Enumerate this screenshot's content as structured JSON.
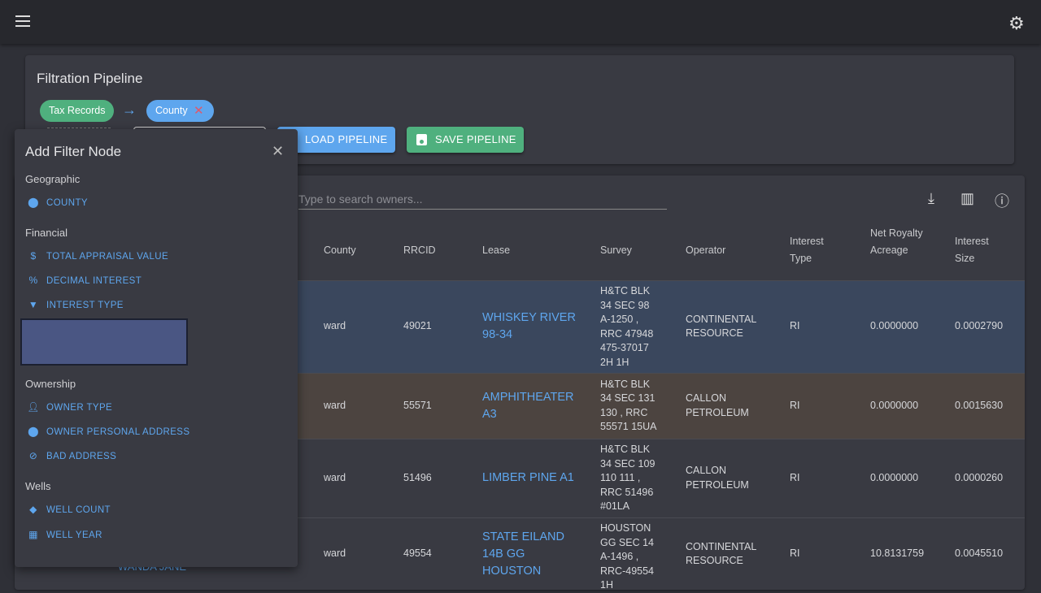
{
  "topbar": {
    "menu_icon": "menu-icon",
    "settings_icon": "gear-icon"
  },
  "pipeline": {
    "title": "Filtration Pipeline",
    "nodes": [
      "Tax Records",
      "County"
    ],
    "load_label": "LOAD PIPELINE",
    "save_label": "SAVE PIPELINE"
  },
  "search": {
    "placeholder": "Type to search owners..."
  },
  "table": {
    "headers": [
      "County",
      "RRCID",
      "Lease",
      "Survey",
      "Operator",
      "Interest Type",
      "Net Royalty Acreage",
      "Interest Size"
    ],
    "rows": [
      {
        "county": "ward",
        "rrcid": "49021",
        "lease": "WHISKEY RIVER 98-34",
        "survey": "H&TC BLK 34 SEC 98 A-1250 , RRC 47948 475-37017 2H 1H",
        "operator": "CONTINENTAL RESOURCE",
        "interest_type": "RI",
        "nra": "0.0000000",
        "size": "0.0002790"
      },
      {
        "county": "ward",
        "rrcid": "55571",
        "lease": "AMPHITHEATER A3",
        "survey": "H&TC BLK 34 SEC 131 130 , RRC 55571 15UA",
        "operator": "CALLON PETROLEUM",
        "interest_type": "RI",
        "nra": "0.0000000",
        "size": "0.0015630"
      },
      {
        "county": "ward",
        "rrcid": "51496",
        "lease": "LIMBER PINE A1",
        "survey": "H&TC BLK 34 SEC 109 110 111 , RRC 51496 #01LA",
        "operator": "CALLON PETROLEUM",
        "interest_type": "RI",
        "nra": "0.0000000",
        "size": "0.0000260"
      },
      {
        "county": "ward",
        "rrcid": "49554",
        "lease": "STATE EILAND 14B GG HOUSTON",
        "survey": "HOUSTON GG SEC 14 A-1496 , RRC-49554 1H",
        "operator": "CONTINENTAL RESOURCE",
        "interest_type": "RI",
        "nra": "10.8131759",
        "size": "0.0045510"
      }
    ],
    "owner_partial": "WANDA JANE"
  },
  "popup": {
    "title": "Add Filter Node",
    "sections": [
      {
        "label": "Geographic",
        "items": [
          "COUNTY"
        ]
      },
      {
        "label": "Financial",
        "items": [
          "TOTAL APPRAISAL VALUE",
          "DECIMAL INTEREST",
          "INTEREST TYPE"
        ]
      },
      {
        "label": "Ownership",
        "items": [
          "OWNER TYPE",
          "OWNER PERSONAL ADDRESS",
          "BAD ADDRESS"
        ]
      },
      {
        "label": "Wells",
        "items": [
          "WELL COUNT",
          "WELL YEAR"
        ]
      }
    ]
  }
}
